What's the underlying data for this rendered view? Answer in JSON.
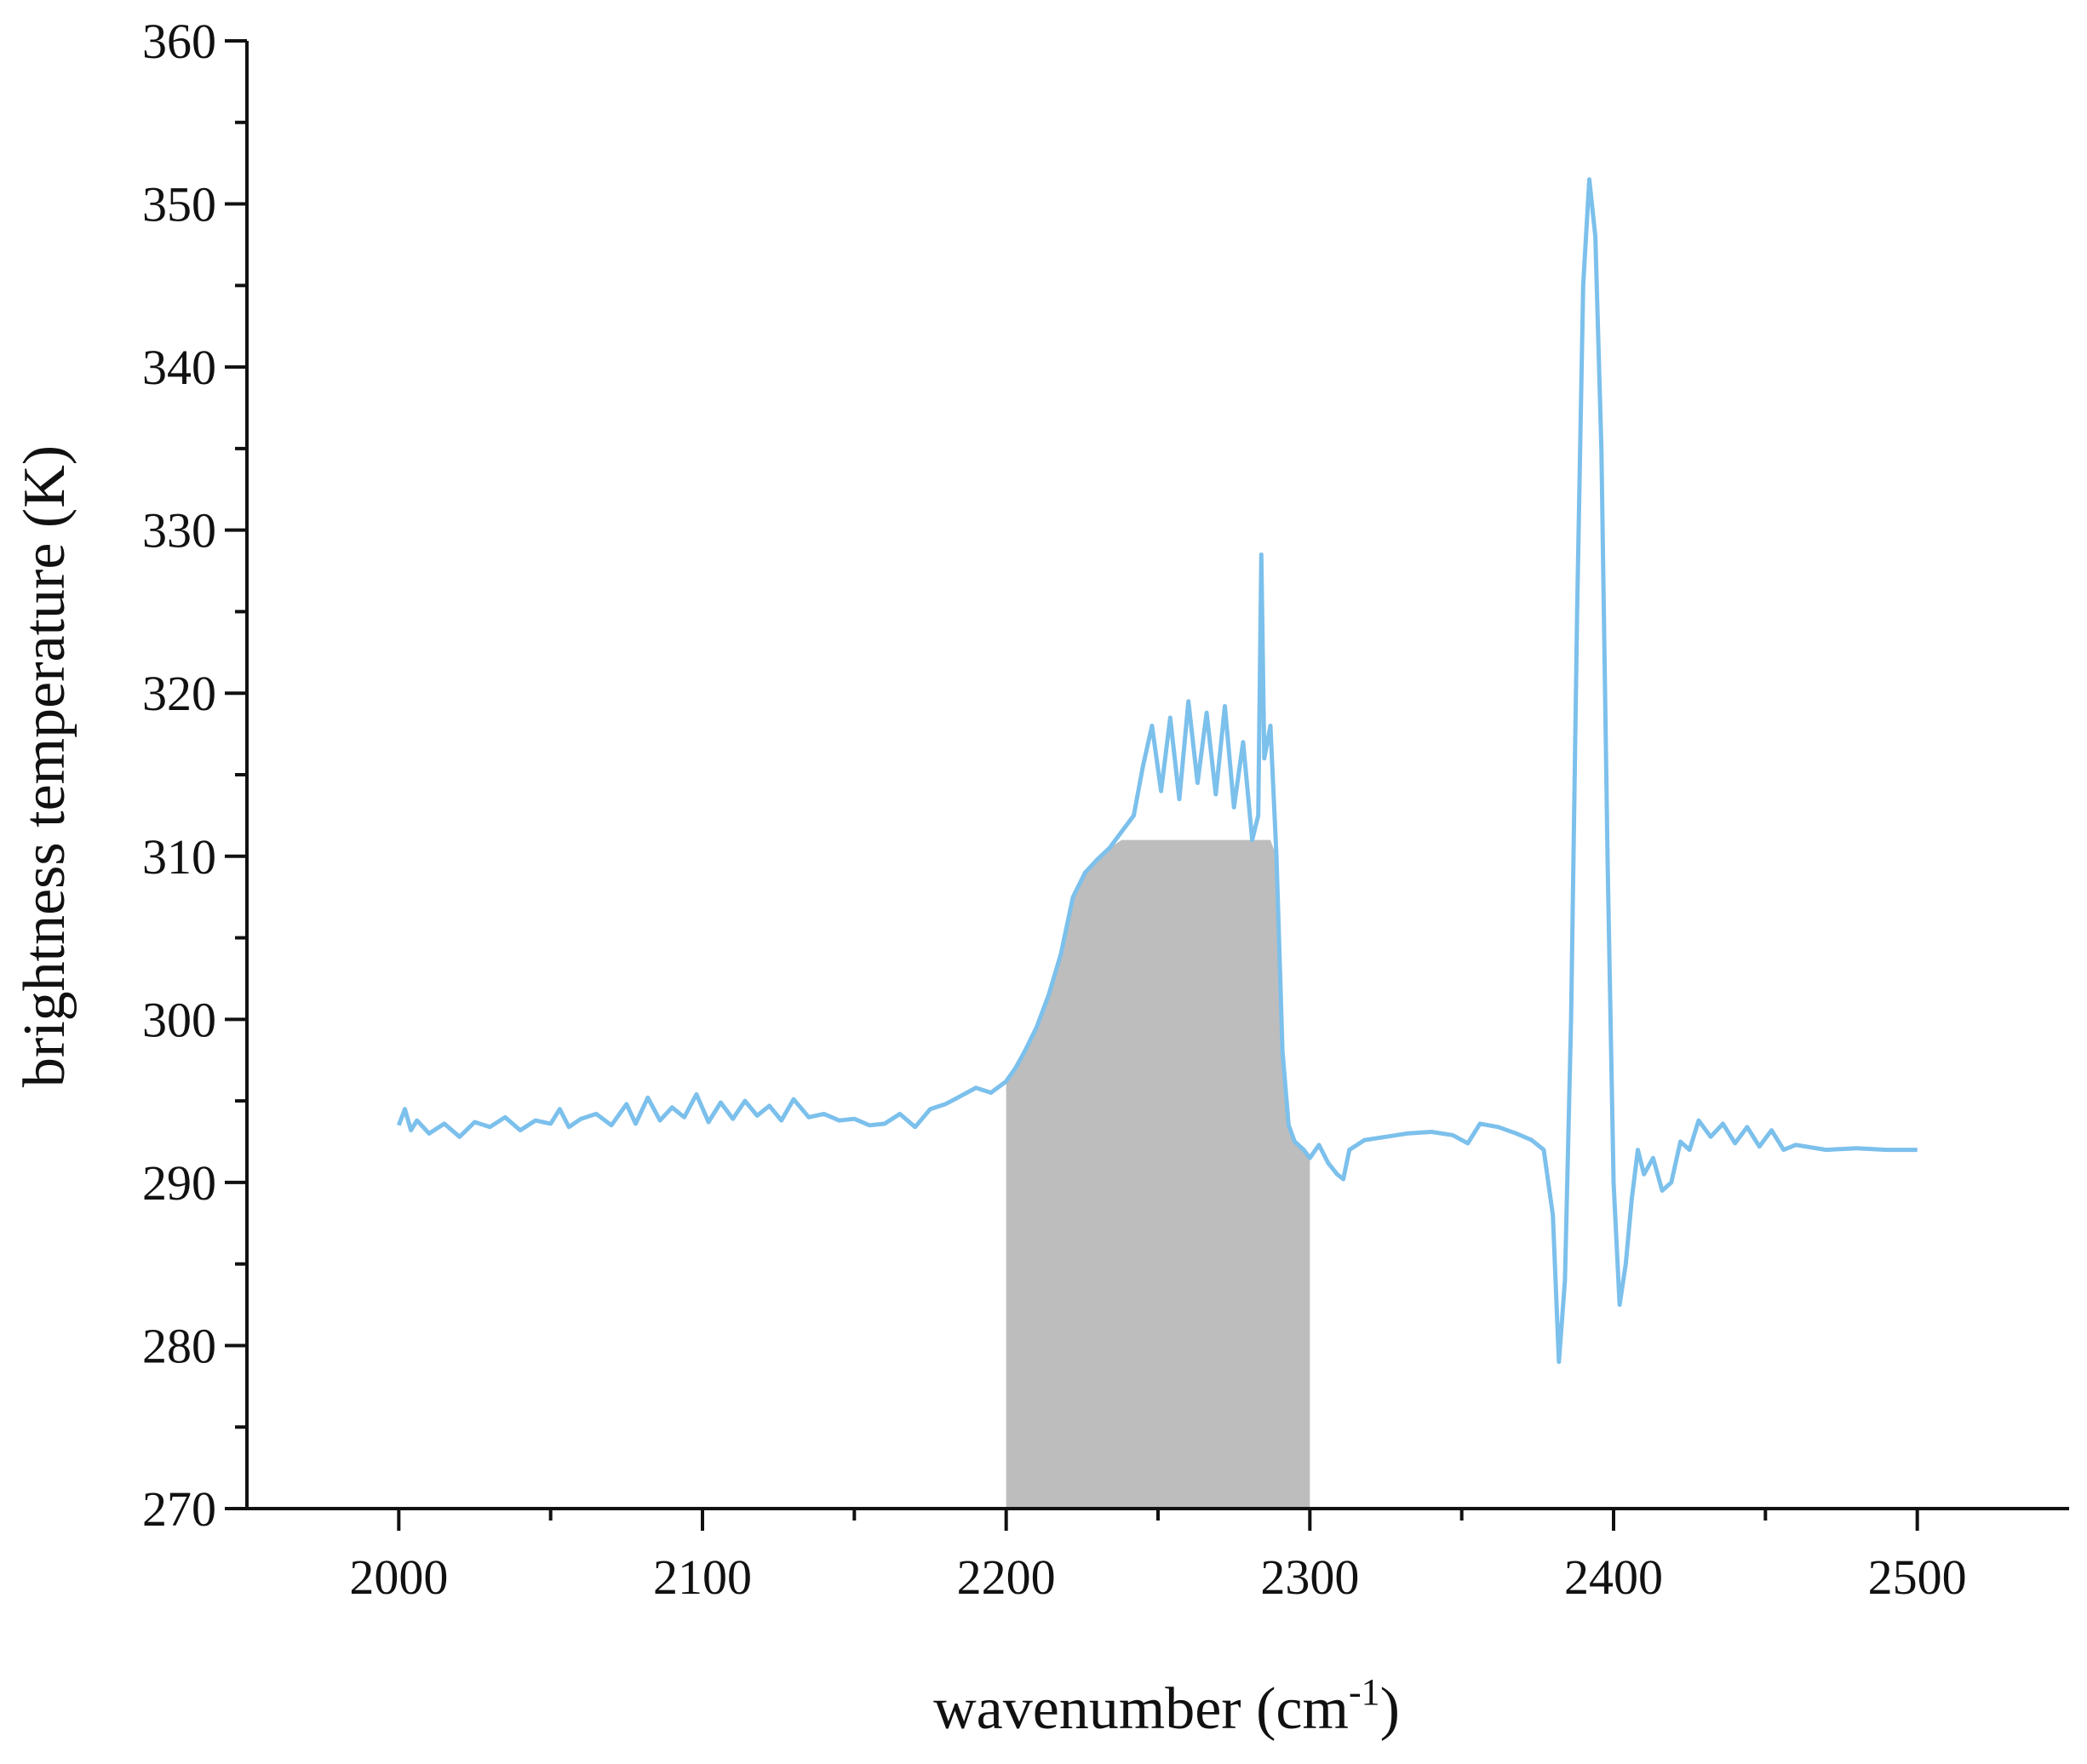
{
  "chart_data": {
    "type": "line",
    "title": "",
    "xlabel": "wavenumber (cm",
    "xlabel_superscript": "-1",
    "xlabel_suffix": ")",
    "ylabel": "brightness temperature (K)",
    "xlim": [
      1950,
      2550
    ],
    "ylim": [
      270,
      360
    ],
    "xticks": [
      2000,
      2100,
      2200,
      2300,
      2400,
      2500
    ],
    "xticks_minor": [
      2050,
      2150,
      2250,
      2350,
      2450
    ],
    "yticks": [
      270,
      280,
      290,
      300,
      310,
      320,
      330,
      340,
      350,
      360
    ],
    "grid": false,
    "colors": {
      "line": "#7cc0ec",
      "shade": "#bdbdbd",
      "axis": "#111111"
    },
    "shaded_region": {
      "x_start": 2200,
      "x_end": 2300
    },
    "series": [
      {
        "x": [
          2000,
          2002,
          2004,
          2006,
          2010,
          2015,
          2020,
          2025,
          2030,
          2035,
          2040,
          2045,
          2050,
          2053,
          2056,
          2060,
          2065,
          2070,
          2075,
          2078,
          2082,
          2086,
          2090,
          2094,
          2098,
          2102,
          2106,
          2110,
          2114,
          2118,
          2122,
          2126,
          2130,
          2135,
          2140,
          2145,
          2150,
          2155,
          2160,
          2165,
          2170,
          2175,
          2180,
          2185,
          2190,
          2195,
          2200,
          2203,
          2206,
          2210,
          2214,
          2218,
          2222,
          2226,
          2230,
          2234,
          2238,
          2242,
          2245,
          2248,
          2251,
          2254,
          2257,
          2260,
          2263,
          2266,
          2269,
          2272,
          2275,
          2278,
          2281,
          2283,
          2284,
          2285,
          2287,
          2289,
          2291,
          2293,
          2295,
          2298,
          2300,
          2303,
          2306,
          2309,
          2311,
          2313,
          2318,
          2325,
          2332,
          2340,
          2347,
          2352,
          2356,
          2362,
          2368,
          2373,
          2377,
          2380,
          2382,
          2384,
          2386,
          2388,
          2390,
          2392,
          2394,
          2396,
          2398,
          2400,
          2402,
          2404,
          2406,
          2408,
          2410,
          2413,
          2416,
          2419,
          2422,
          2425,
          2428,
          2432,
          2436,
          2440,
          2444,
          2448,
          2452,
          2456,
          2460,
          2470,
          2480,
          2490,
          2500
        ],
        "y": [
          293.5,
          294.5,
          293.2,
          293.8,
          293.0,
          293.6,
          292.8,
          293.7,
          293.4,
          294.0,
          293.2,
          293.8,
          293.6,
          294.5,
          293.4,
          293.9,
          294.2,
          293.5,
          294.8,
          293.6,
          295.2,
          293.8,
          294.6,
          294.0,
          295.4,
          293.7,
          294.9,
          293.9,
          295.0,
          294.1,
          294.7,
          293.8,
          295.1,
          294.0,
          294.2,
          293.8,
          293.9,
          293.5,
          293.6,
          294.2,
          293.4,
          294.5,
          294.8,
          295.3,
          295.8,
          295.5,
          296.2,
          297.0,
          298.0,
          299.5,
          301.5,
          304.0,
          307.5,
          309.0,
          309.8,
          310.5,
          311.5,
          312.5,
          315.5,
          318.0,
          314.0,
          318.5,
          313.5,
          319.5,
          314.5,
          318.8,
          313.8,
          319.2,
          313.0,
          317.0,
          311.0,
          312.5,
          328.5,
          316.0,
          318.0,
          310.0,
          298.0,
          293.5,
          292.5,
          292.0,
          291.5,
          292.3,
          291.2,
          290.5,
          290.2,
          292.0,
          292.6,
          292.8,
          293.0,
          293.1,
          292.9,
          292.4,
          293.6,
          293.4,
          293.0,
          292.6,
          292.0,
          288.0,
          279.0,
          284.0,
          300.0,
          325.0,
          345.0,
          351.5,
          348.0,
          335.0,
          310.0,
          290.0,
          282.5,
          285.0,
          289.0,
          292.0,
          290.5,
          291.5,
          289.5,
          290.0,
          292.5,
          292.0,
          293.8,
          292.8,
          293.6,
          292.4,
          293.4,
          292.2,
          293.2,
          292.0,
          292.3,
          292.0,
          292.1,
          292.0,
          292.0
        ]
      }
    ]
  }
}
